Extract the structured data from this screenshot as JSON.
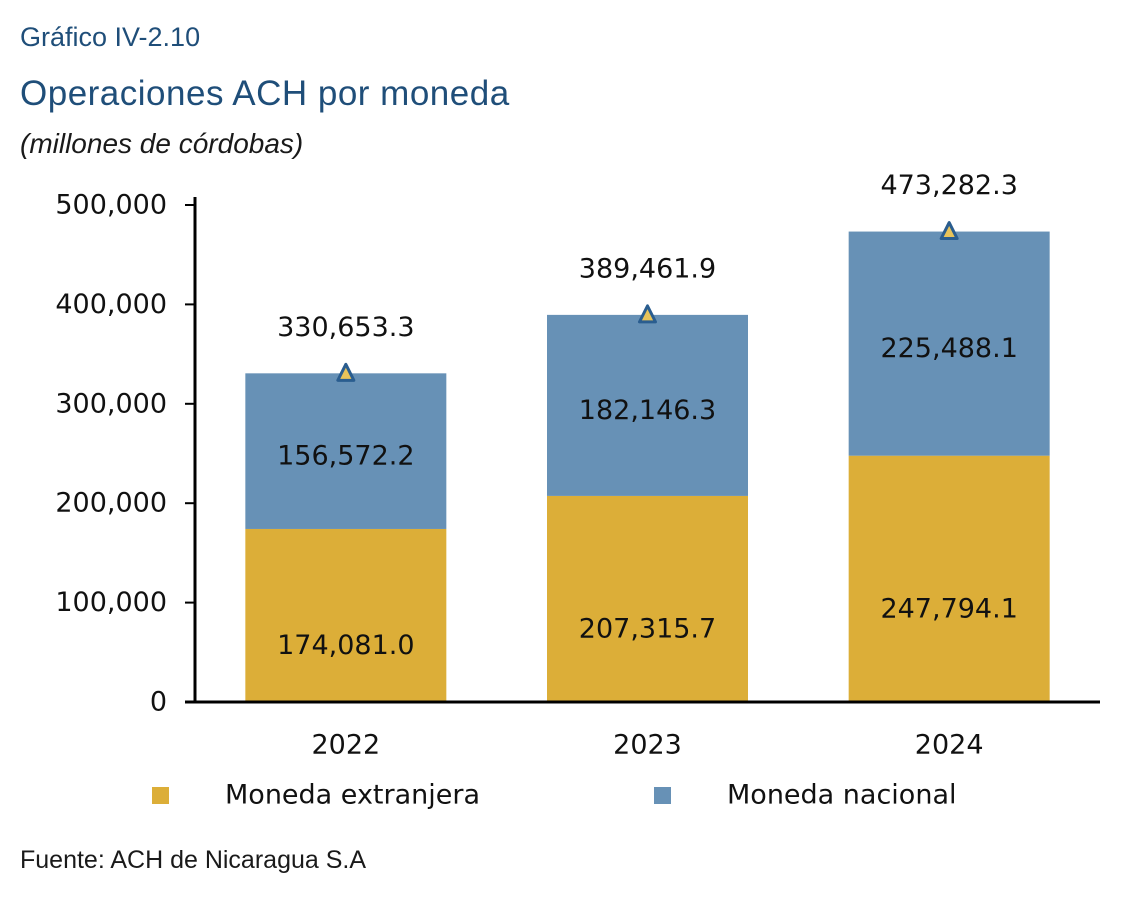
{
  "header": {
    "label": "Gráfico IV-2.10",
    "title": "Operaciones ACH por moneda",
    "subtitle": "(millones de córdobas)"
  },
  "source": "Fuente: ACH de Nicaragua S.A",
  "chart_data": {
    "type": "bar",
    "stacked": true,
    "categories": [
      "2022",
      "2023",
      "2024"
    ],
    "series": [
      {
        "name": "Moneda extranjera",
        "color": "#dcae38",
        "values": [
          174081.0,
          207315.7,
          247794.1
        ],
        "labels": [
          "174,081.0",
          "207,315.7",
          "247,794.1"
        ]
      },
      {
        "name": "Moneda nacional",
        "color": "#6791b6",
        "values": [
          156572.2,
          182146.3,
          225488.1
        ],
        "labels": [
          "156,572.2",
          "182,146.3",
          "225,488.1"
        ]
      }
    ],
    "totals": {
      "values": [
        330653.3,
        389461.9,
        473282.3
      ],
      "labels": [
        "330,653.3",
        "389,461.9",
        "473,282.3"
      ],
      "marker": "triangle",
      "marker_color": "#e8c35a",
      "marker_outline": "#2a5d8f"
    },
    "ylim": [
      0,
      500000
    ],
    "yticks": [
      0,
      100000,
      200000,
      300000,
      400000,
      500000
    ],
    "ytick_labels": [
      "0",
      "100,000",
      "200,000",
      "300,000",
      "400,000",
      "500,000"
    ],
    "legend_position": "bottom",
    "grid": false
  }
}
